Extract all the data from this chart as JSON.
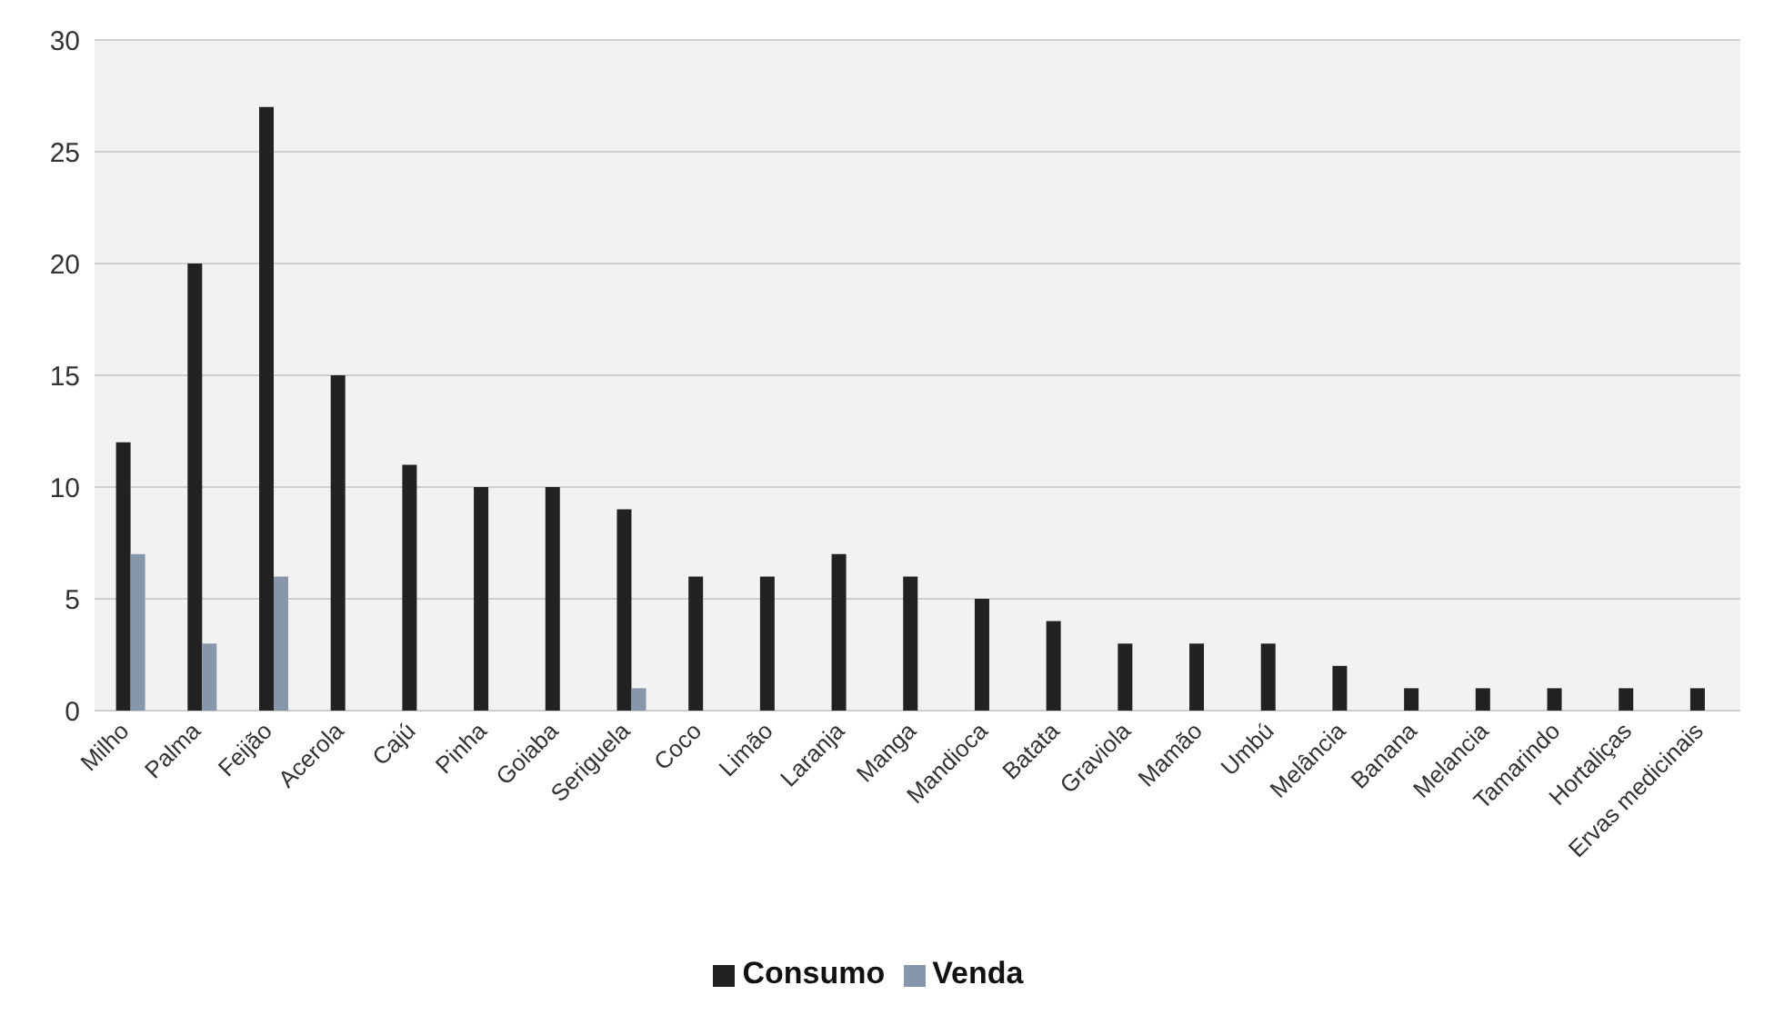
{
  "chart_data": {
    "type": "bar",
    "categories": [
      "Milho",
      "Palma",
      "Feijão",
      "Acerola",
      "Cajú",
      "Pinha",
      "Goiaba",
      "Seriguela",
      "Coco",
      "Limão",
      "Laranja",
      "Manga",
      "Mandioca",
      "Batata",
      "Graviola",
      "Mamão",
      "Umbú",
      "Melância",
      "Banana",
      "Melancia",
      "Tamarindo",
      "Hortaliças",
      "Ervas medicinais"
    ],
    "series": [
      {
        "name": "Consumo",
        "color": "#222222",
        "values": [
          12,
          20,
          27,
          15,
          11,
          10,
          10,
          9,
          6,
          6,
          7,
          6,
          5,
          4,
          3,
          3,
          3,
          2,
          1,
          1,
          1,
          1,
          1
        ]
      },
      {
        "name": "Venda",
        "color": "#8796ab",
        "values": [
          7,
          3,
          6,
          null,
          null,
          null,
          null,
          1,
          null,
          null,
          null,
          null,
          null,
          null,
          null,
          null,
          null,
          null,
          null,
          null,
          null,
          null,
          null
        ]
      }
    ],
    "ylim": [
      0,
      30
    ],
    "yticks": [
      0,
      5,
      10,
      15,
      20,
      25,
      30
    ],
    "grid": "y",
    "legend": "bottom"
  }
}
